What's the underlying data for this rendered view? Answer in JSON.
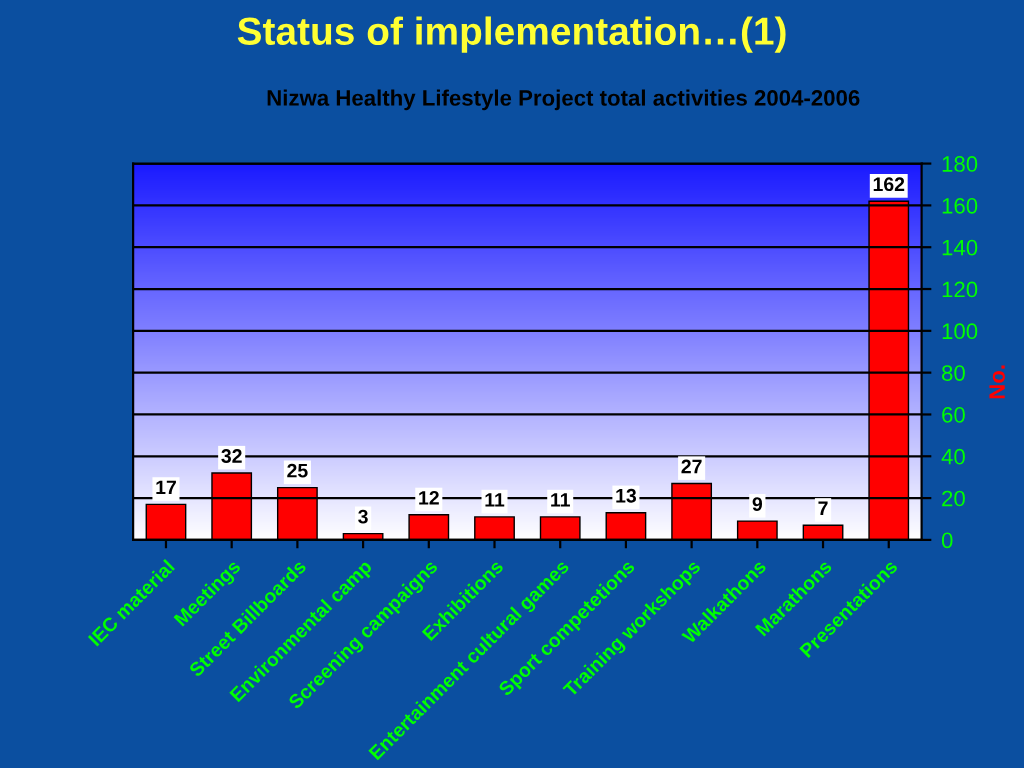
{
  "chart_data": {
    "type": "bar",
    "title": "Status of implementation…(1)",
    "subtitle": "Nizwa Healthy Lifestyle Project total activities 2004-2006",
    "ylabel": "No.",
    "categories": [
      "IEC material",
      "Meetings",
      "Street Billboards",
      "Environmental camp",
      "Screening campaigns",
      "Exhibitions",
      "Entertainment cultural games",
      "Sport competetions",
      "Training workshops",
      "Walkathons",
      "Marathons",
      "Presentations"
    ],
    "values": [
      17,
      32,
      25,
      3,
      12,
      11,
      11,
      13,
      27,
      9,
      7,
      162
    ],
    "color": "#ff0000",
    "ylim": [
      0,
      180
    ],
    "yticks": [
      0,
      20,
      40,
      60,
      80,
      100,
      120,
      140,
      160,
      180
    ],
    "grid": "y",
    "data_labels": true,
    "legend": false
  }
}
